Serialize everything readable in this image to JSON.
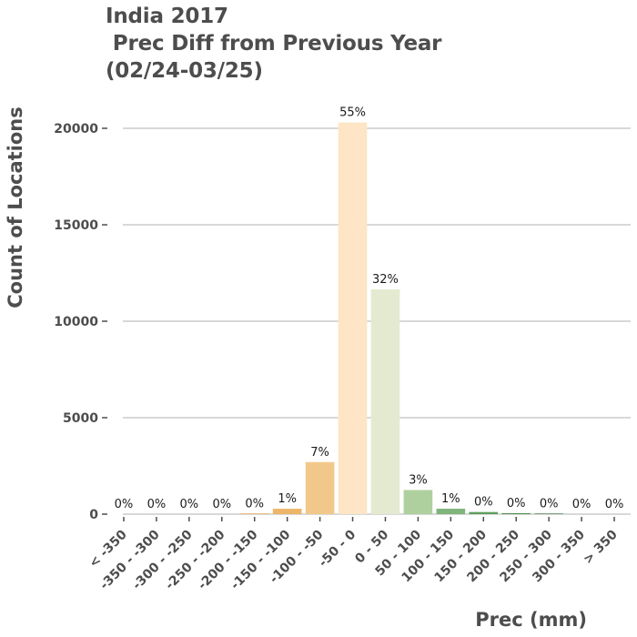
{
  "chart_data": {
    "type": "bar",
    "title_lines": [
      "India 2017",
      " Prec Diff from Previous Year",
      "(02/24-03/25)"
    ],
    "xlabel": "Prec (mm)",
    "ylabel": "Count of Locations",
    "ylim": [
      0,
      21000
    ],
    "yticks": [
      0,
      5000,
      10000,
      15000,
      20000
    ],
    "grid": true,
    "categories": [
      "< -350",
      "-350 - -300",
      "-300 - -250",
      "-250 - -200",
      "-200 - -150",
      "-150 - -100",
      "-100 - -50",
      "-50 - 0",
      "0 - 50",
      "50 - 100",
      "100 - 150",
      "150 - 200",
      "200 - 250",
      "250 - 300",
      "300 - 350",
      "> 350"
    ],
    "values": [
      0,
      0,
      0,
      0,
      30,
      280,
      2700,
      20300,
      11650,
      1250,
      280,
      110,
      50,
      30,
      0,
      0
    ],
    "labels": [
      "0%",
      "0%",
      "0%",
      "0%",
      "0%",
      "1%",
      "7%",
      "55%",
      "32%",
      "3%",
      "1%",
      "0%",
      "0%",
      "0%",
      "0%",
      "0%"
    ],
    "colors": [
      "#e69f2b",
      "#e69f2b",
      "#e69f2b",
      "#e69f2b",
      "#e8a74a",
      "#ecb56a",
      "#f2c88a",
      "#fde5c5",
      "#e3ead0",
      "#aed09f",
      "#7fb47a",
      "#5e9e5e",
      "#4f8f4f",
      "#3f7f3f",
      "#2f6f2f",
      "#2f6f2f"
    ],
    "gridcolor": "#cccccc"
  }
}
